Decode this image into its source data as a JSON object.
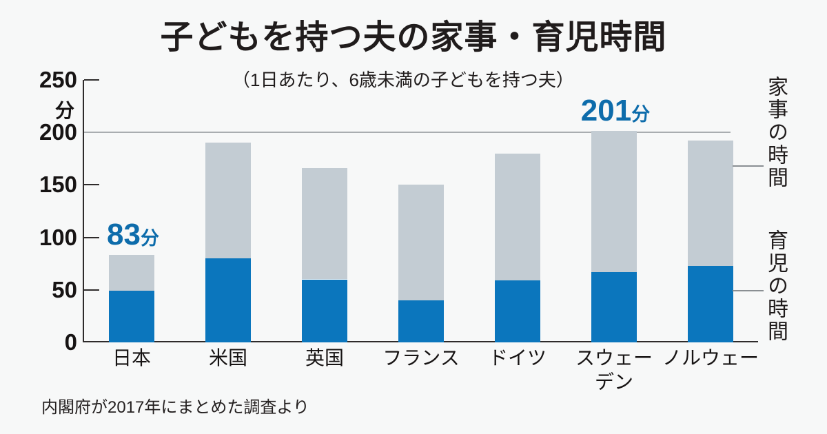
{
  "header": {
    "title": "子どもを持つ夫の家事・育児時間",
    "subtitle": "（1日あたり、6歳未満の子どもを持つ夫）"
  },
  "side_labels": {
    "housework": "家事の時間",
    "childcare": "育児の時間"
  },
  "footer": {
    "source": "内閣府が2017年にまとめた調査より"
  },
  "chart_data": {
    "type": "bar",
    "stacked": true,
    "title": "子どもを持つ夫の家事・育児時間",
    "subtitle": "（1日あたり、6歳未満の子どもを持つ夫）",
    "unit": "分",
    "ylabel": "分",
    "ylim": [
      0,
      250
    ],
    "y_ticks": [
      0,
      50,
      100,
      150,
      200,
      250
    ],
    "gridline_at": 200,
    "legend_position": "right",
    "categories": [
      "日本",
      "米国",
      "英国",
      "フランス",
      "ドイツ",
      "スウェーデン",
      "ノルウェー"
    ],
    "category_label_lines": [
      [
        "日本"
      ],
      [
        "米国"
      ],
      [
        "英国"
      ],
      [
        "フランス"
      ],
      [
        "ドイツ"
      ],
      [
        "スウェー",
        "デン"
      ],
      [
        "ノルウェー"
      ]
    ],
    "series": [
      {
        "name": "育児の時間",
        "color": "#0b76bd",
        "values": [
          49,
          80,
          60,
          40,
          59,
          67,
          73
        ]
      },
      {
        "name": "家事の時間",
        "color": "#c3ccd3",
        "values": [
          34,
          110,
          106,
          110,
          121,
          134,
          119
        ]
      }
    ],
    "totals": [
      83,
      190,
      166,
      150,
      180,
      201,
      192
    ],
    "annotations": [
      {
        "category": "日本",
        "index": 0,
        "value": 83,
        "label": "83",
        "suffix": "分"
      },
      {
        "category": "スウェーデン",
        "index": 5,
        "value": 201,
        "label": "201",
        "suffix": "分"
      }
    ],
    "colors": {
      "childcare_bar": "#0b76bd",
      "housework_bar": "#c3ccd3",
      "annotation_text": "#0d6cab",
      "axis": "#2e2b2b",
      "gridline": "#a9adb0",
      "background": "#f7f8f8"
    }
  }
}
